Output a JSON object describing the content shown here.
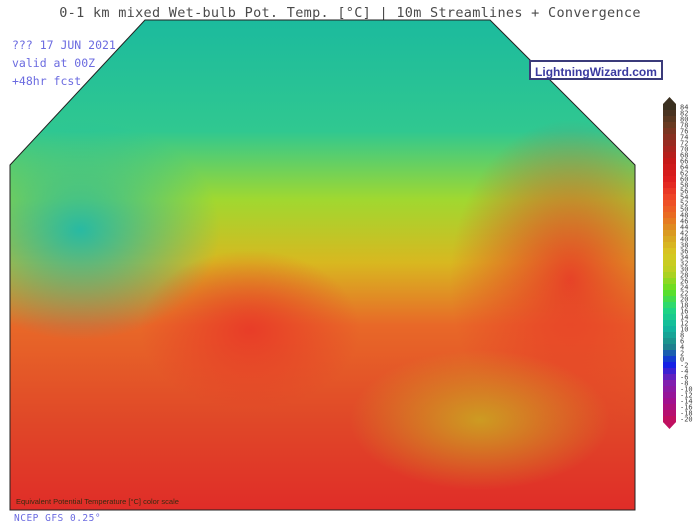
{
  "title": "0-1 km mixed Wet-bulb Pot. Temp. [°C] | 10m Streamlines + Convergence",
  "info": {
    "date": "??? 17 JUN 2021",
    "valid": "valid at 00Z",
    "forecast": "+48hr fcst"
  },
  "logo": "LightningWizard.com",
  "credit": "NCEP GFS 0.25°",
  "map_overlay_text": "Equivalent Potential Temperature [°C] color scale",
  "colorbar": {
    "labels": [
      "84",
      "82",
      "80",
      "78",
      "76",
      "74",
      "72",
      "70",
      "68",
      "66",
      "64",
      "62",
      "60",
      "58",
      "56",
      "54",
      "52",
      "50",
      "48",
      "46",
      "44",
      "42",
      "40",
      "38",
      "36",
      "34",
      "32",
      "30",
      "28",
      "26",
      "24",
      "22",
      "20",
      "18",
      "16",
      "14",
      "12",
      "10",
      "8",
      "6",
      "4",
      "2",
      "0",
      "-2",
      "-4",
      "-6",
      "-8",
      "-10",
      "-12",
      "-14",
      "-16",
      "-18",
      "-20"
    ],
    "color_stops": [
      "#3a3020",
      "#6a3a20",
      "#9a2a20",
      "#c81818",
      "#e02020",
      "#f04828",
      "#e87020",
      "#d8a020",
      "#d8c820",
      "#b8d020",
      "#60e020",
      "#20d880",
      "#10b8a0",
      "#208888",
      "#1020e8",
      "#8020b0",
      "#a01090",
      "#c01060"
    ]
  },
  "map_colors": {
    "north": "#20c8a0",
    "mid": "#90d830",
    "center": "#d8c020",
    "south": "#e83020"
  }
}
